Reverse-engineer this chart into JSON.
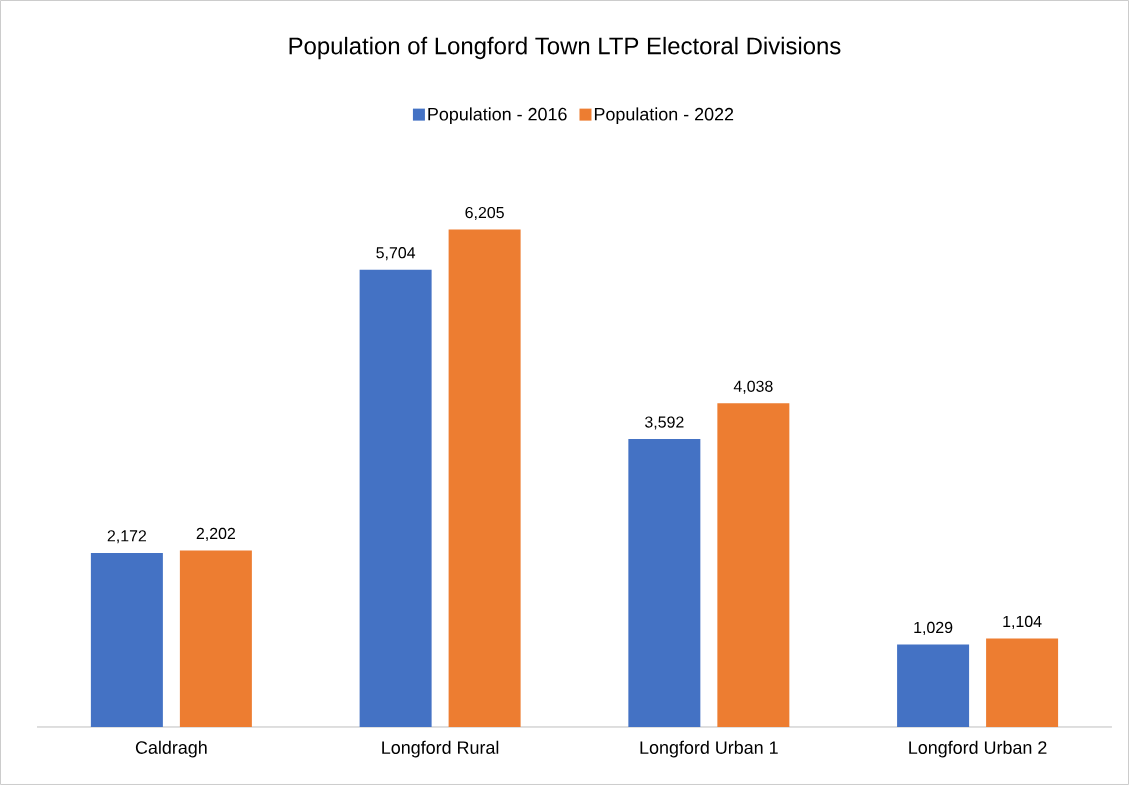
{
  "chart_data": {
    "type": "bar",
    "title": "Population of Longford Town LTP Electoral Divisions",
    "categories": [
      "Caldragh",
      "Longford Rural",
      "Longford Urban 1",
      "Longford Urban 2"
    ],
    "series": [
      {
        "name": "Population - 2016",
        "color": "#4472c4",
        "values": [
          2172,
          5704,
          3592,
          1029
        ],
        "value_labels": [
          "2,172",
          "5,704",
          "3,592",
          "1,029"
        ]
      },
      {
        "name": "Population - 2022",
        "color": "#ed7d31",
        "values": [
          2202,
          6205,
          4038,
          1104
        ],
        "value_labels": [
          "2,202",
          "6,205",
          "4,038",
          "1,104"
        ]
      }
    ],
    "legend": "top"
  }
}
